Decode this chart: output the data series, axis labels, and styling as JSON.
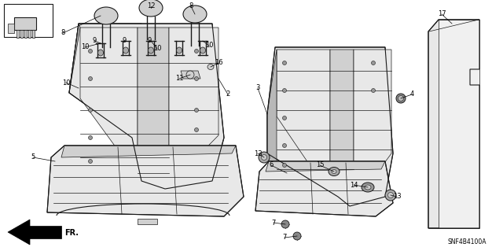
{
  "part_number": "SNF4B4100A",
  "bg_color": "#ffffff",
  "line_color": "#1a1a1a",
  "fill_light": "#e8e8e8",
  "fill_mid": "#d0d0d0",
  "fill_dark": "#b8b8b8"
}
